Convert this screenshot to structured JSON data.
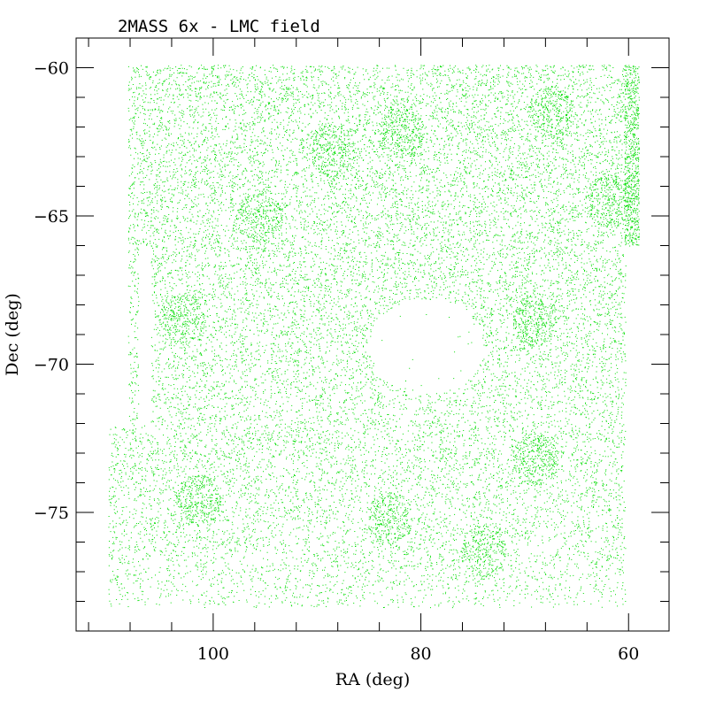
{
  "chart_data": {
    "type": "scatter",
    "title": "2MASS 6x - LMC field",
    "xlabel": "RA (deg)",
    "ylabel": "Dec (deg)",
    "xlim": [
      113.2,
      56.1
    ],
    "ylim": [
      -79.0,
      -59.0
    ],
    "x_ticks": [
      100,
      80,
      60
    ],
    "y_ticks": [
      -60,
      -65,
      -70,
      -75
    ],
    "x_minor_step": 4,
    "y_minor_step": 1,
    "grid": false,
    "point_color": "#00dd00",
    "point_count": 24000,
    "field": {
      "ra_range": [
        110.1,
        60.3
      ],
      "dec_range": [
        -78.2,
        -59.9
      ],
      "extra_strip_ra": [
        59.0,
        60.4
      ],
      "extra_strip_dec": [
        -66.0,
        -59.9
      ],
      "gap_strip_ra": [
        107.2,
        106.0
      ],
      "gap_strip_dec": [
        -72.0,
        -66.0
      ],
      "missing_corner_ra": [
        110.1,
        108.2
      ],
      "missing_corner_dec": [
        -72.0,
        -59.9
      ],
      "void_center": [
        79.5,
        -69.4
      ],
      "void_radius_deg": [
        5.5,
        1.6
      ]
    },
    "dense_clusters": [
      {
        "ra": 67.5,
        "dec": -61.5
      },
      {
        "ra": 82.0,
        "dec": -62.2
      },
      {
        "ra": 88.5,
        "dec": -62.8
      },
      {
        "ra": 95.5,
        "dec": -65.0
      },
      {
        "ra": 103.0,
        "dec": -68.5
      },
      {
        "ra": 69.0,
        "dec": -68.5
      },
      {
        "ra": 69.0,
        "dec": -73.2
      },
      {
        "ra": 101.5,
        "dec": -74.6
      },
      {
        "ra": 74.0,
        "dec": -76.3
      },
      {
        "ra": 83.0,
        "dec": -75.2
      },
      {
        "ra": 62.0,
        "dec": -64.5
      }
    ]
  }
}
